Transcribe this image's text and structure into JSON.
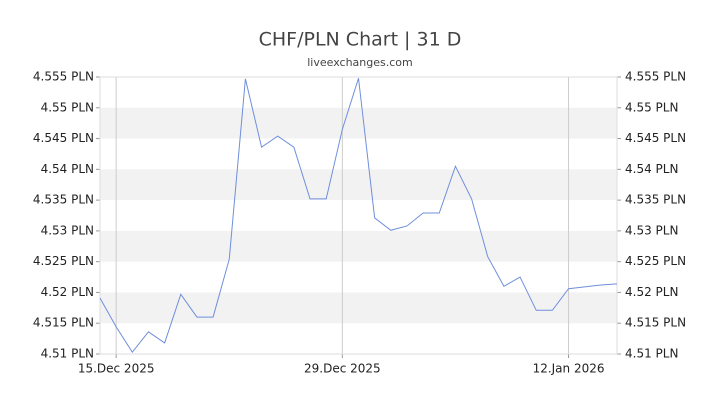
{
  "chart_data": {
    "type": "line",
    "title": "CHF/PLN Chart | 31 D",
    "subtitle": "liveexchanges.com",
    "x": [
      "2025-12-14",
      "2025-12-15",
      "2025-12-16",
      "2025-12-17",
      "2025-12-18",
      "2025-12-19",
      "2025-12-20",
      "2025-12-21",
      "2025-12-22",
      "2025-12-23",
      "2025-12-24",
      "2025-12-25",
      "2025-12-26",
      "2025-12-27",
      "2025-12-28",
      "2025-12-29",
      "2025-12-30",
      "2025-12-31",
      "2026-01-01",
      "2026-01-02",
      "2026-01-03",
      "2026-01-04",
      "2026-01-05",
      "2026-01-06",
      "2026-01-07",
      "2026-01-08",
      "2026-01-09",
      "2026-01-10",
      "2026-01-11",
      "2026-01-12",
      "2026-01-13",
      "2026-01-14",
      "2026-01-15"
    ],
    "series": [
      {
        "name": "CHF/PLN",
        "color": "#6f8fdc",
        "values": [
          4.5191,
          4.5144,
          4.5103,
          4.5136,
          4.5118,
          4.5197,
          4.516,
          4.516,
          4.5254,
          4.5547,
          4.5436,
          4.5454,
          4.5436,
          4.5352,
          4.5352,
          4.5465,
          4.5548,
          4.5321,
          4.5301,
          4.5308,
          4.5329,
          4.5329,
          4.5405,
          4.5352,
          4.5258,
          4.521,
          4.5225,
          4.5171,
          4.5171,
          4.5206,
          4.5209,
          4.5212,
          4.5214
        ]
      }
    ],
    "xlim": [
      "2025-12-14",
      "2026-01-15"
    ],
    "xticks": [
      {
        "value": "2025-12-15",
        "label": "15.Dec 2025"
      },
      {
        "value": "2025-12-29",
        "label": "29.Dec 2025"
      },
      {
        "value": "2026-01-12",
        "label": "12.Jan 2026"
      }
    ],
    "ylim": [
      4.51,
      4.555
    ],
    "yticks": [
      {
        "value": 4.51,
        "label": "4.51 PLN"
      },
      {
        "value": 4.515,
        "label": "4.515 PLN"
      },
      {
        "value": 4.52,
        "label": "4.52 PLN"
      },
      {
        "value": 4.525,
        "label": "4.525 PLN"
      },
      {
        "value": 4.53,
        "label": "4.53 PLN"
      },
      {
        "value": 4.535,
        "label": "4.535 PLN"
      },
      {
        "value": 4.54,
        "label": "4.54 PLN"
      },
      {
        "value": 4.545,
        "label": "4.545 PLN"
      },
      {
        "value": 4.55,
        "label": "4.55 PLN"
      },
      {
        "value": 4.555,
        "label": "4.555 PLN"
      }
    ],
    "y2lim": [
      4.51,
      4.555
    ],
    "y2ticks": [
      {
        "value": 4.51,
        "label": "4.51 PLN"
      },
      {
        "value": 4.515,
        "label": "4.515 PLN"
      },
      {
        "value": 4.52,
        "label": "4.52 PLN"
      },
      {
        "value": 4.525,
        "label": "4.525 PLN"
      },
      {
        "value": 4.53,
        "label": "4.53 PLN"
      },
      {
        "value": 4.535,
        "label": "4.535 PLN"
      },
      {
        "value": 4.54,
        "label": "4.54 PLN"
      },
      {
        "value": 4.545,
        "label": "4.545 PLN"
      },
      {
        "value": 4.55,
        "label": "4.55 PLN"
      },
      {
        "value": 4.555,
        "label": "4.555 PLN"
      }
    ],
    "grid": true
  }
}
